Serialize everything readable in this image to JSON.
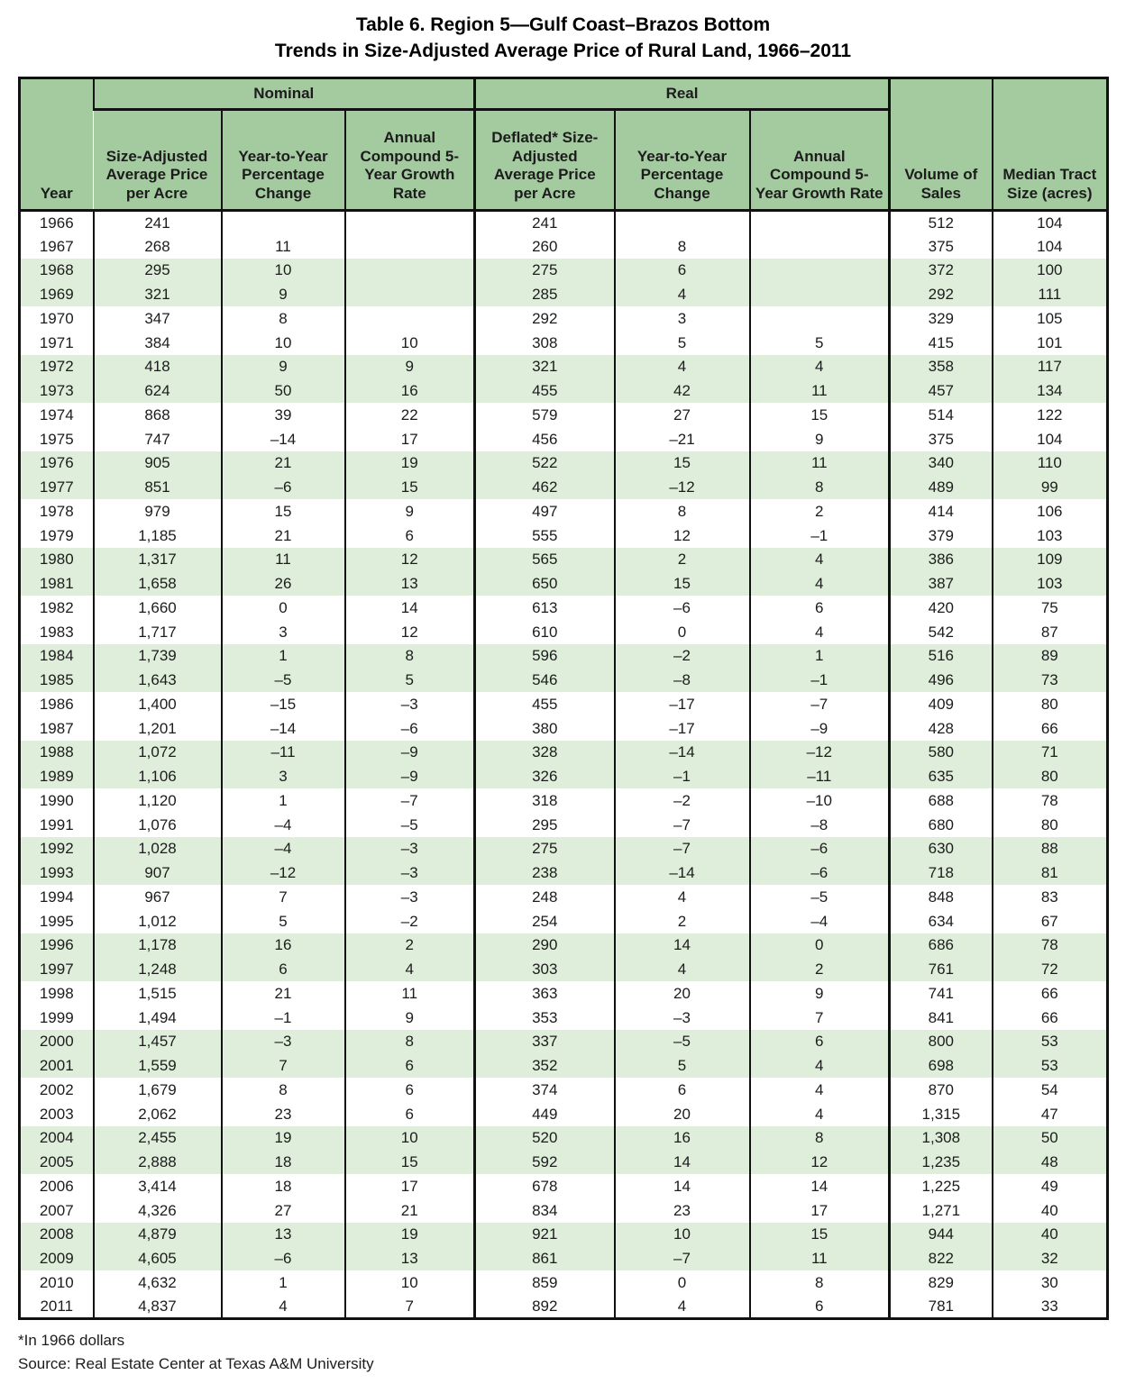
{
  "title": {
    "line1": "Table 6. Region 5—Gulf Coast–Brazos Bottom",
    "line2": "Trends in Size-Adjusted Average Price of Rural Land, 1966–2011"
  },
  "colors": {
    "header_green": "#a4caa0",
    "stripe_green": "#dfeeda",
    "border_black": "#111111"
  },
  "table": {
    "corner_header": "Year",
    "groups": {
      "nominal": "Nominal",
      "real": "Real"
    },
    "sub_headers": {
      "nominal_price": "Size-Adjusted Average Price per Acre",
      "nominal_yty": "Year-to-Year Percentage Change",
      "nominal_5yr": "Annual Compound 5-Year Growth Rate",
      "real_price": "Deflated* Size-Adjusted Average Price per Acre",
      "real_yty": "Year-to-Year Percentage Change",
      "real_5yr": "Annual Compound 5-Year Growth Rate",
      "volume": "Volume of Sales",
      "median": "Median Tract Size (acres)"
    },
    "column_names": [
      "year",
      "nominal-price",
      "nominal-yty-change",
      "nominal-5yr-growth",
      "real-price",
      "real-yty-change",
      "real-5yr-growth",
      "volume-of-sales",
      "median-tract-size"
    ],
    "rows": [
      [
        "1966",
        "241",
        "",
        "",
        "241",
        "",
        "",
        "512",
        "104"
      ],
      [
        "1967",
        "268",
        "11",
        "",
        "260",
        "8",
        "",
        "375",
        "104"
      ],
      [
        "1968",
        "295",
        "10",
        "",
        "275",
        "6",
        "",
        "372",
        "100"
      ],
      [
        "1969",
        "321",
        "9",
        "",
        "285",
        "4",
        "",
        "292",
        "111"
      ],
      [
        "1970",
        "347",
        "8",
        "",
        "292",
        "3",
        "",
        "329",
        "105"
      ],
      [
        "1971",
        "384",
        "10",
        "10",
        "308",
        "5",
        "5",
        "415",
        "101"
      ],
      [
        "1972",
        "418",
        "9",
        "9",
        "321",
        "4",
        "4",
        "358",
        "117"
      ],
      [
        "1973",
        "624",
        "50",
        "16",
        "455",
        "42",
        "11",
        "457",
        "134"
      ],
      [
        "1974",
        "868",
        "39",
        "22",
        "579",
        "27",
        "15",
        "514",
        "122"
      ],
      [
        "1975",
        "747",
        "–14",
        "17",
        "456",
        "–21",
        "9",
        "375",
        "104"
      ],
      [
        "1976",
        "905",
        "21",
        "19",
        "522",
        "15",
        "11",
        "340",
        "110"
      ],
      [
        "1977",
        "851",
        "–6",
        "15",
        "462",
        "–12",
        "8",
        "489",
        "99"
      ],
      [
        "1978",
        "979",
        "15",
        "9",
        "497",
        "8",
        "2",
        "414",
        "106"
      ],
      [
        "1979",
        "1,185",
        "21",
        "6",
        "555",
        "12",
        "–1",
        "379",
        "103"
      ],
      [
        "1980",
        "1,317",
        "11",
        "12",
        "565",
        "2",
        "4",
        "386",
        "109"
      ],
      [
        "1981",
        "1,658",
        "26",
        "13",
        "650",
        "15",
        "4",
        "387",
        "103"
      ],
      [
        "1982",
        "1,660",
        "0",
        "14",
        "613",
        "–6",
        "6",
        "420",
        "75"
      ],
      [
        "1983",
        "1,717",
        "3",
        "12",
        "610",
        "0",
        "4",
        "542",
        "87"
      ],
      [
        "1984",
        "1,739",
        "1",
        "8",
        "596",
        "–2",
        "1",
        "516",
        "89"
      ],
      [
        "1985",
        "1,643",
        "–5",
        "5",
        "546",
        "–8",
        "–1",
        "496",
        "73"
      ],
      [
        "1986",
        "1,400",
        "–15",
        "–3",
        "455",
        "–17",
        "–7",
        "409",
        "80"
      ],
      [
        "1987",
        "1,201",
        "–14",
        "–6",
        "380",
        "–17",
        "–9",
        "428",
        "66"
      ],
      [
        "1988",
        "1,072",
        "–11",
        "–9",
        "328",
        "–14",
        "–12",
        "580",
        "71"
      ],
      [
        "1989",
        "1,106",
        "3",
        "–9",
        "326",
        "–1",
        "–11",
        "635",
        "80"
      ],
      [
        "1990",
        "1,120",
        "1",
        "–7",
        "318",
        "–2",
        "–10",
        "688",
        "78"
      ],
      [
        "1991",
        "1,076",
        "–4",
        "–5",
        "295",
        "–7",
        "–8",
        "680",
        "80"
      ],
      [
        "1992",
        "1,028",
        "–4",
        "–3",
        "275",
        "–7",
        "–6",
        "630",
        "88"
      ],
      [
        "1993",
        "907",
        "–12",
        "–3",
        "238",
        "–14",
        "–6",
        "718",
        "81"
      ],
      [
        "1994",
        "967",
        "7",
        "–3",
        "248",
        "4",
        "–5",
        "848",
        "83"
      ],
      [
        "1995",
        "1,012",
        "5",
        "–2",
        "254",
        "2",
        "–4",
        "634",
        "67"
      ],
      [
        "1996",
        "1,178",
        "16",
        "2",
        "290",
        "14",
        "0",
        "686",
        "78"
      ],
      [
        "1997",
        "1,248",
        "6",
        "4",
        "303",
        "4",
        "2",
        "761",
        "72"
      ],
      [
        "1998",
        "1,515",
        "21",
        "11",
        "363",
        "20",
        "9",
        "741",
        "66"
      ],
      [
        "1999",
        "1,494",
        "–1",
        "9",
        "353",
        "–3",
        "7",
        "841",
        "66"
      ],
      [
        "2000",
        "1,457",
        "–3",
        "8",
        "337",
        "–5",
        "6",
        "800",
        "53"
      ],
      [
        "2001",
        "1,559",
        "7",
        "6",
        "352",
        "5",
        "4",
        "698",
        "53"
      ],
      [
        "2002",
        "1,679",
        "8",
        "6",
        "374",
        "6",
        "4",
        "870",
        "54"
      ],
      [
        "2003",
        "2,062",
        "23",
        "6",
        "449",
        "20",
        "4",
        "1,315",
        "47"
      ],
      [
        "2004",
        "2,455",
        "19",
        "10",
        "520",
        "16",
        "8",
        "1,308",
        "50"
      ],
      [
        "2005",
        "2,888",
        "18",
        "15",
        "592",
        "14",
        "12",
        "1,235",
        "48"
      ],
      [
        "2006",
        "3,414",
        "18",
        "17",
        "678",
        "14",
        "14",
        "1,225",
        "49"
      ],
      [
        "2007",
        "4,326",
        "27",
        "21",
        "834",
        "23",
        "17",
        "1,271",
        "40"
      ],
      [
        "2008",
        "4,879",
        "13",
        "19",
        "921",
        "10",
        "15",
        "944",
        "40"
      ],
      [
        "2009",
        "4,605",
        "–6",
        "13",
        "861",
        "–7",
        "11",
        "822",
        "32"
      ],
      [
        "2010",
        "4,632",
        "1",
        "10",
        "859",
        "0",
        "8",
        "829",
        "30"
      ],
      [
        "2011",
        "4,837",
        "4",
        "7",
        "892",
        "4",
        "6",
        "781",
        "33"
      ]
    ]
  },
  "footnotes": {
    "deflator": "*In 1966 dollars",
    "source": "Source: Real Estate Center at Texas A&M University"
  }
}
